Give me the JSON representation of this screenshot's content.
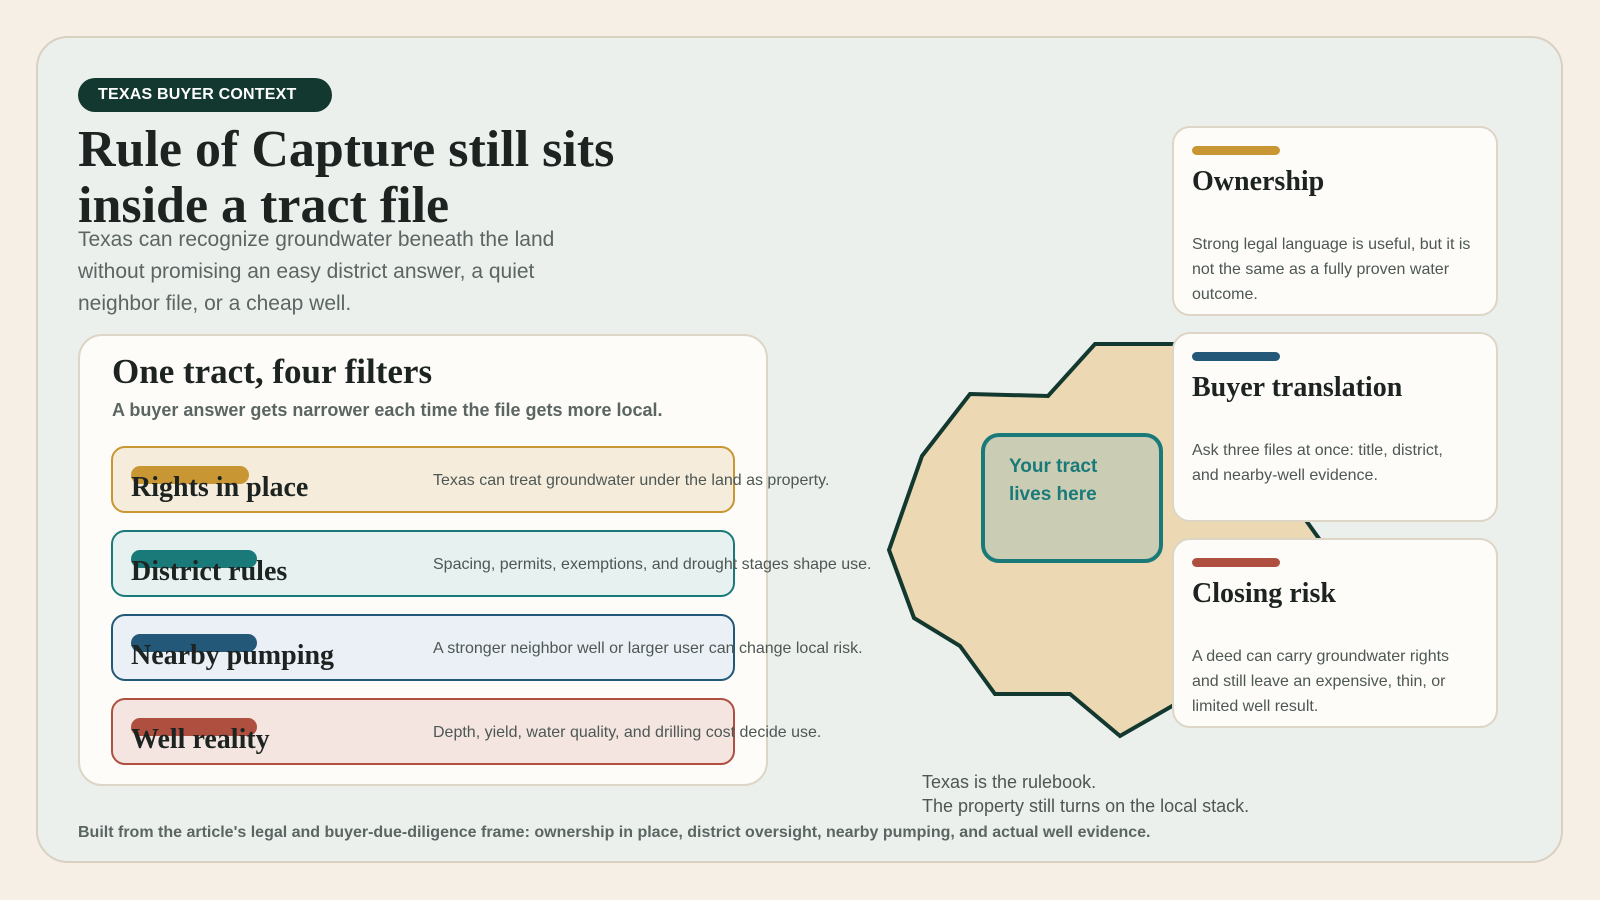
{
  "tag": "TEXAS BUYER CONTEXT",
  "headline": "Rule of Capture still sits inside a tract file",
  "intro": "Texas can recognize groundwater beneath the land without promising an easy district answer, a quiet neighbor file, or a cheap well.",
  "filters": {
    "title": "One tract, four filters",
    "subtitle": "A buyer answer gets narrower each time the file gets more local.",
    "rows": [
      {
        "label": "Rights in place",
        "desc": "Texas can treat groundwater under the land as property.",
        "accent": "#c99634",
        "fill": "#f6ecdc"
      },
      {
        "label": "District rules",
        "desc": "Spacing, permits, exemptions, and drought stages shape use.",
        "accent": "#1a7a7a",
        "fill": "#e7f1f0"
      },
      {
        "label": "Nearby pumping",
        "desc": "A stronger neighbor well or larger user can change local risk.",
        "accent": "#245879",
        "fill": "#eaf0f5"
      },
      {
        "label": "Well reality",
        "desc": "Depth, yield, water quality, and drilling cost decide use.",
        "accent": "#ae4f40",
        "fill": "#f5e5e0"
      }
    ]
  },
  "tract": {
    "label": "Your tract lives here",
    "fill": "#ecd9b3",
    "outline": "#12382f"
  },
  "cards": [
    {
      "title": "Ownership",
      "body": "Strong legal language is useful, but it is not the same as a fully proven water outcome.",
      "accent": "#c99634"
    },
    {
      "title": "Buyer translation",
      "body": "Ask three files at once: title, district, and nearby-well evidence.",
      "accent": "#245879"
    },
    {
      "title": "Closing risk",
      "body": "A deed can carry groundwater rights and still leave an expensive, thin, or limited well result.",
      "accent": "#ae4f40"
    }
  ],
  "caption": {
    "line1": "Texas is the rulebook.",
    "line2": "The property still turns on the local stack."
  },
  "footnote": "Built from the article's legal and buyer-due-diligence frame: ownership in place, district oversight, nearby pumping, and actual well evidence."
}
